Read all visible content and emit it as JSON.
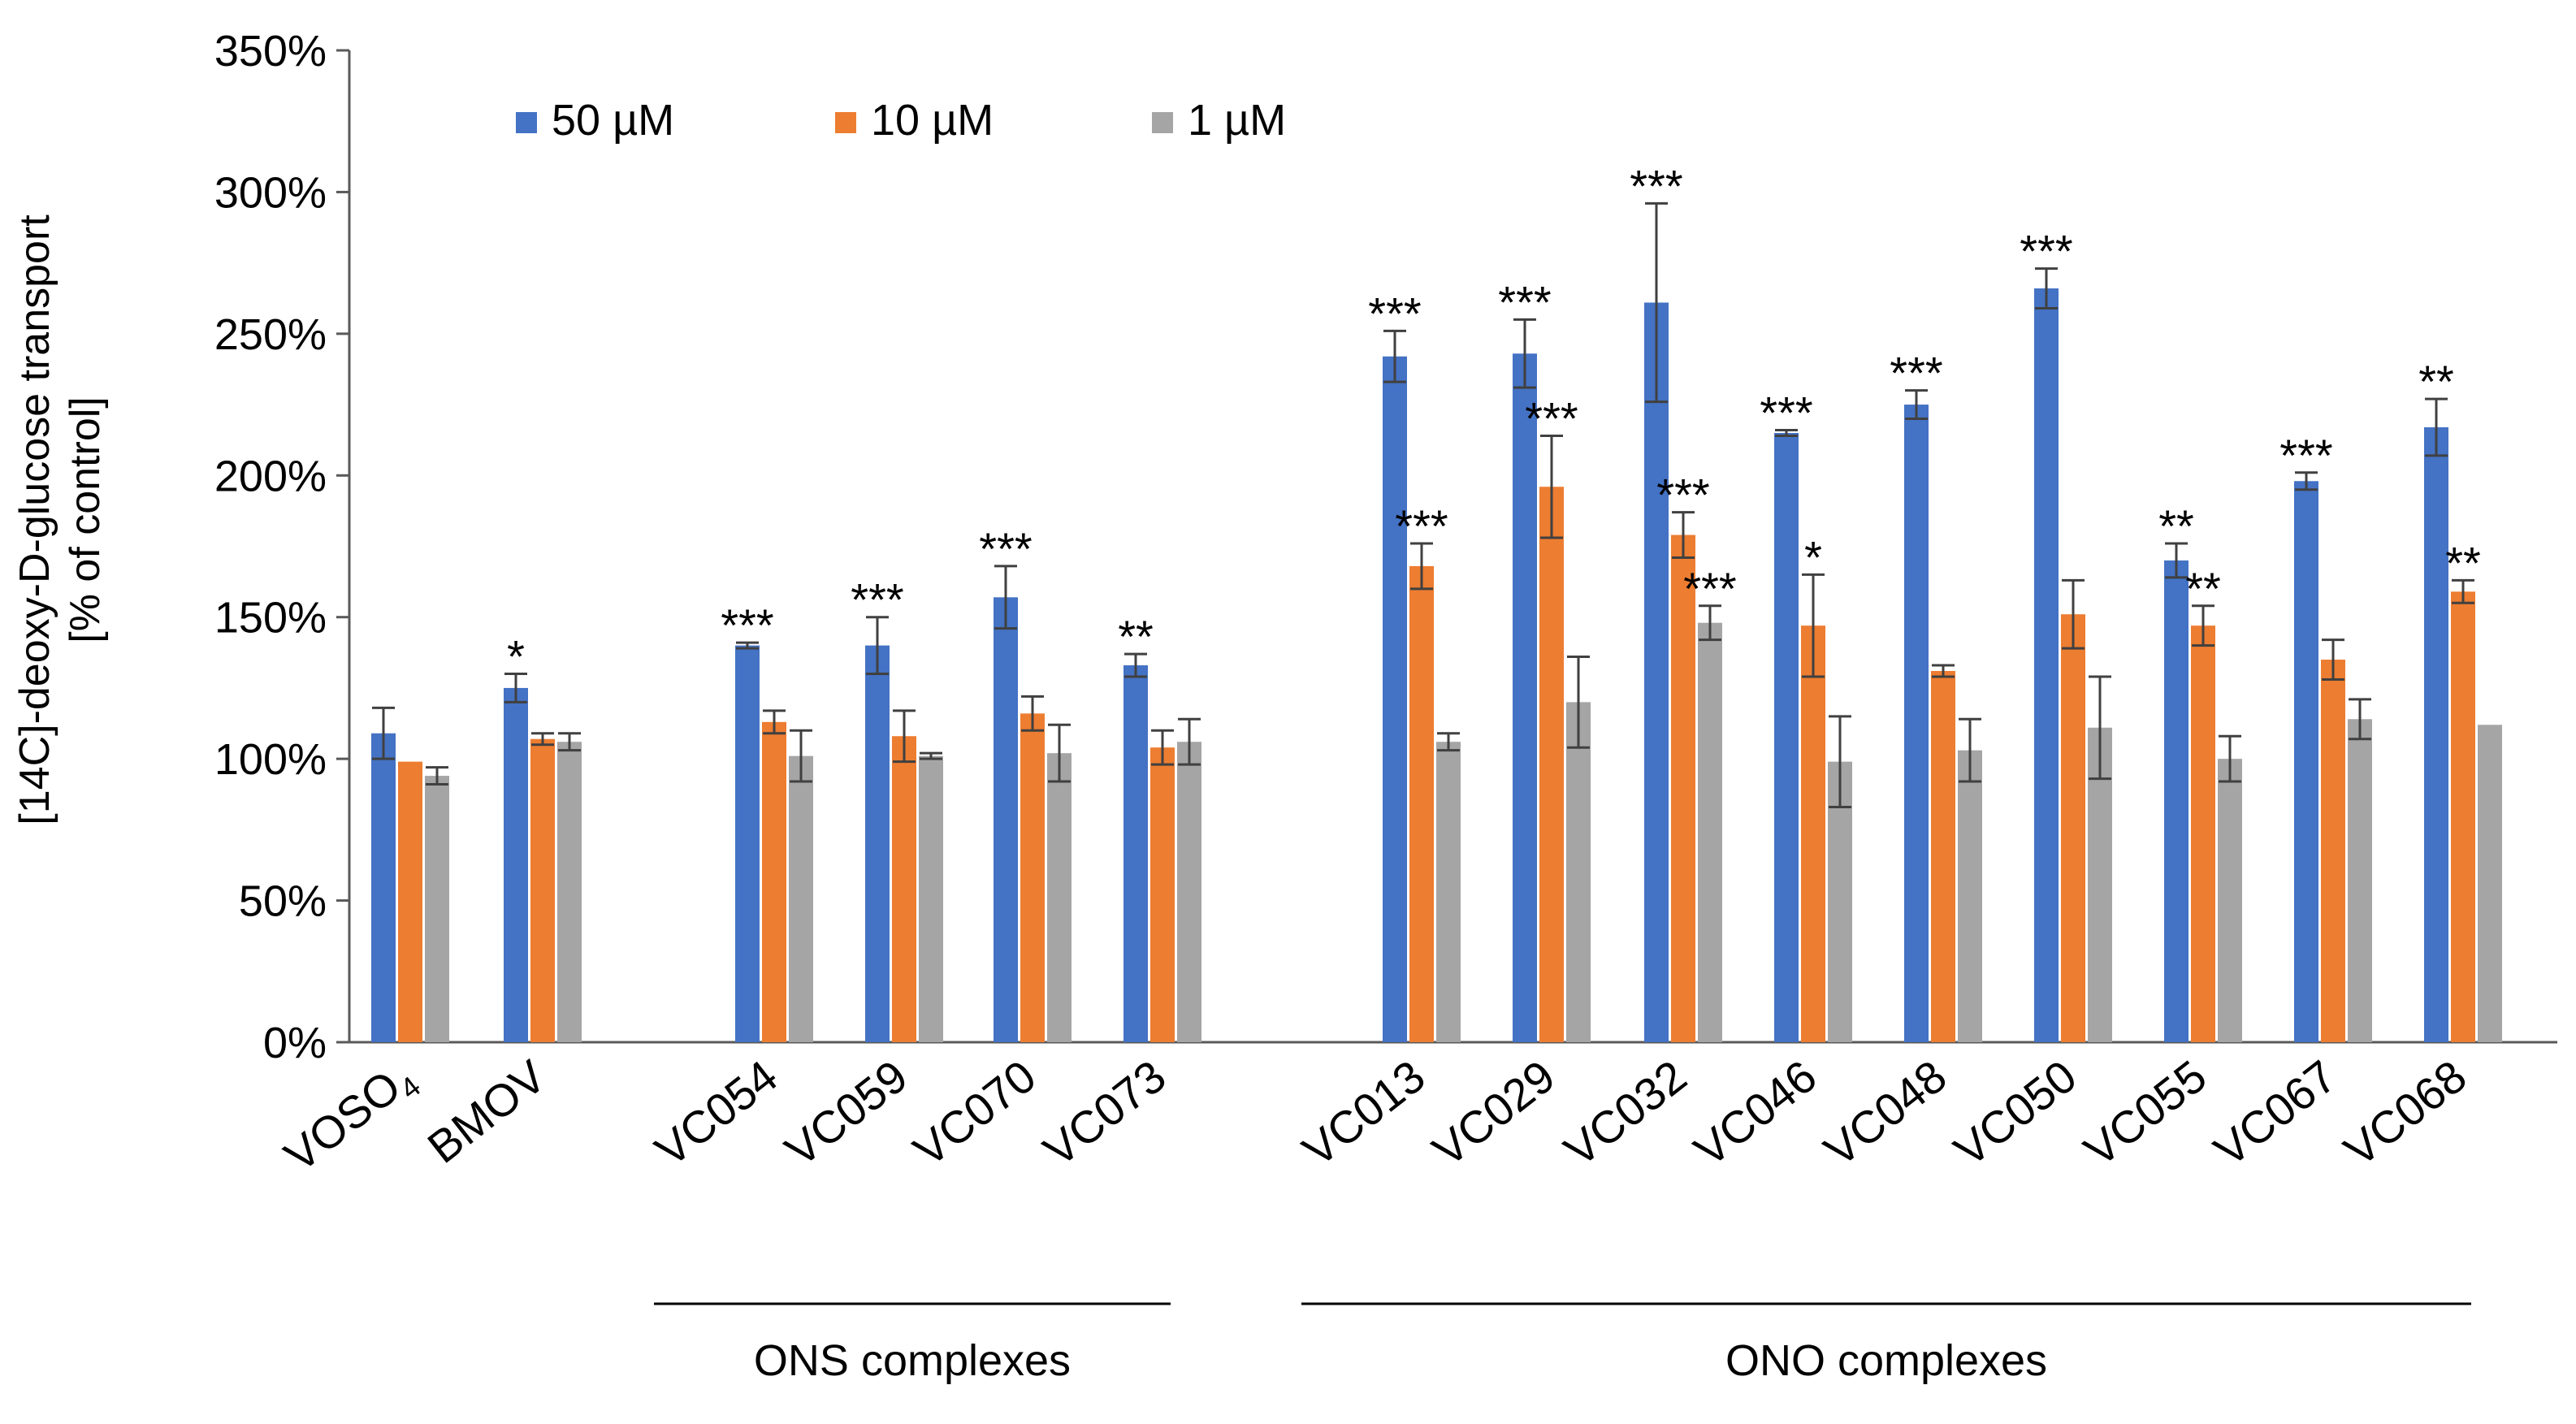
{
  "chart_data": {
    "type": "bar",
    "title": "",
    "xlabel": "",
    "ylabel_lines": [
      "[14C]-deoxy-D-glucose transport",
      "[% of control]"
    ],
    "ylim": [
      0,
      350
    ],
    "y_ticks": [
      0,
      50,
      100,
      150,
      200,
      250,
      300,
      350
    ],
    "y_tick_suffix": "%",
    "grid": false,
    "legend_position": "top-left",
    "categories": [
      "VOSO4",
      "BMOV",
      "VC054",
      "VC059",
      "VC070",
      "VC073",
      "VC013",
      "VC029",
      "VC032",
      "VC046",
      "VC048",
      "VC050",
      "VC055",
      "VC067",
      "VC068"
    ],
    "category_label_parts": [
      {
        "main": "VOSO",
        "sub": "4"
      },
      {
        "main": "BMOV",
        "sub": ""
      },
      {
        "main": "VC054",
        "sub": ""
      },
      {
        "main": "VC059",
        "sub": ""
      },
      {
        "main": "VC070",
        "sub": ""
      },
      {
        "main": "VC073",
        "sub": ""
      },
      {
        "main": "VC013",
        "sub": ""
      },
      {
        "main": "VC029",
        "sub": ""
      },
      {
        "main": "VC032",
        "sub": ""
      },
      {
        "main": "VC046",
        "sub": ""
      },
      {
        "main": "VC048",
        "sub": ""
      },
      {
        "main": "VC050",
        "sub": ""
      },
      {
        "main": "VC055",
        "sub": ""
      },
      {
        "main": "VC067",
        "sub": ""
      },
      {
        "main": "VC068",
        "sub": ""
      }
    ],
    "series": [
      {
        "name": "50 µM",
        "color": "#4472C4",
        "values": [
          109,
          125,
          140,
          140,
          157,
          133,
          242,
          243,
          261,
          215,
          225,
          266,
          170,
          198,
          217
        ],
        "errors": [
          9,
          5,
          1,
          10,
          11,
          4,
          9,
          12,
          35,
          1,
          5,
          7,
          6,
          3,
          10
        ],
        "significance": [
          "",
          "*",
          "***",
          "***",
          "***",
          "**",
          "***",
          "***",
          "***",
          "***",
          "***",
          "***",
          "**",
          "***",
          "**"
        ]
      },
      {
        "name": "10 µM",
        "color": "#ED7D31",
        "values": [
          99,
          107,
          113,
          108,
          116,
          104,
          168,
          196,
          179,
          147,
          131,
          151,
          147,
          135,
          159
        ],
        "errors": [
          0,
          2,
          4,
          9,
          6,
          6,
          8,
          18,
          8,
          18,
          2,
          12,
          7,
          7,
          4
        ],
        "significance": [
          "",
          "",
          "",
          "",
          "",
          "",
          "***",
          "***",
          "***",
          "*",
          "",
          "",
          "**",
          "",
          "**"
        ]
      },
      {
        "name": "1 µM",
        "color": "#A5A5A5",
        "values": [
          94,
          106,
          101,
          101,
          102,
          106,
          106,
          120,
          148,
          99,
          103,
          111,
          100,
          114,
          112
        ],
        "errors": [
          3,
          3,
          9,
          1,
          10,
          8,
          3,
          16,
          6,
          16,
          11,
          18,
          8,
          7,
          0
        ],
        "significance": [
          "",
          "",
          "",
          "",
          "",
          "",
          "",
          "",
          "***",
          "",
          "",
          "",
          "",
          "",
          ""
        ]
      }
    ],
    "groups": [
      {
        "label": "ONS complexes",
        "categories": [
          "VC054",
          "VC059",
          "VC070",
          "VC073"
        ]
      },
      {
        "label": "ONO complexes",
        "categories": [
          "VC013",
          "VC029",
          "VC032",
          "VC046",
          "VC048",
          "VC050",
          "VC055",
          "VC067",
          "VC068"
        ]
      }
    ]
  }
}
